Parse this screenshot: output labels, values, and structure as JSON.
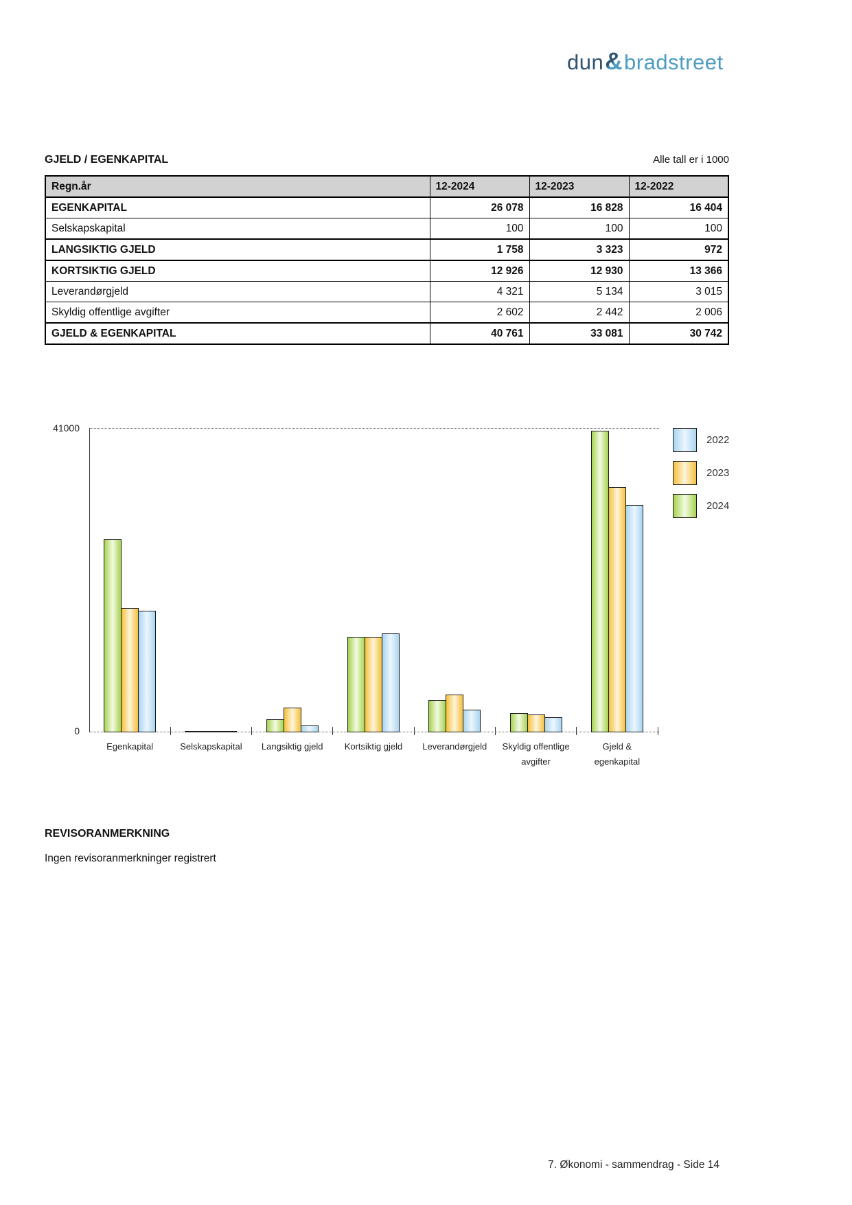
{
  "logo": {
    "part1": "dun",
    "amp": "&",
    "part2": "bradstreet",
    "color_dark": "#30536e",
    "color_light": "#4e9cc0"
  },
  "section": {
    "title": "GJELD / EGENKAPITAL",
    "unit_note": "Alle tall er i 1000"
  },
  "table": {
    "header": [
      "Regn.år",
      "12-2024",
      "12-2023",
      "12-2022"
    ],
    "rows": [
      {
        "label": "EGENKAPITAL",
        "values": [
          "26 078",
          "16 828",
          "16 404"
        ],
        "bold": true
      },
      {
        "label": "Selskapskapital",
        "values": [
          "100",
          "100",
          "100"
        ],
        "bold": false
      },
      {
        "label": "LANGSIKTIG GJELD",
        "values": [
          "1 758",
          "3 323",
          "972"
        ],
        "bold": true
      },
      {
        "label": "KORTSIKTIG GJELD",
        "values": [
          "12 926",
          "12 930",
          "13 366"
        ],
        "bold": true
      },
      {
        "label": "Leverandørgjeld",
        "values": [
          "4 321",
          "5 134",
          "3 015"
        ],
        "bold": false
      },
      {
        "label": "Skyldig offentlige avgifter",
        "values": [
          "2 602",
          "2 442",
          "2 006"
        ],
        "bold": false
      },
      {
        "label": "GJELD & EGENKAPITAL",
        "values": [
          "40 761",
          "33 081",
          "30 742"
        ],
        "bold": true
      }
    ],
    "header_bg": "#d2d2d2"
  },
  "chart_data": {
    "type": "bar",
    "title": "",
    "xlabel": "",
    "ylabel": "",
    "ylim": [
      0,
      41000
    ],
    "y_top_label": "41000",
    "y_bottom_label": "0",
    "grid": "dotted line at y=41000 and dotted baseline at y=0 only",
    "legend_position": "right",
    "legend_order_top_to_bottom": [
      "2022",
      "2023",
      "2024"
    ],
    "categories": [
      "Egenkapital",
      "Selskapskapital",
      "Langsiktig gjeld",
      "Kortsiktig gjeld",
      "Leverandørgjeld",
      "Skyldig offentlige avgifter",
      "Gjeld & egenkapital"
    ],
    "category_labels": [
      [
        "Egenkapital"
      ],
      [
        "Selskapskapital"
      ],
      [
        "Langsiktig gjeld"
      ],
      [
        "Kortsiktig gjeld"
      ],
      [
        "Leverandørgjeld"
      ],
      [
        "Skyldig offentlige",
        "avgifter"
      ],
      [
        "Gjeld &",
        "egenkapital"
      ]
    ],
    "series": [
      {
        "name": "2024",
        "color_edge": "#a6d34f",
        "color_center": "#f3fae3",
        "values": [
          26078,
          100,
          1758,
          12926,
          4321,
          2602,
          40761
        ]
      },
      {
        "name": "2023",
        "color_edge": "#f5c13c",
        "color_center": "#fdf4da",
        "values": [
          16828,
          100,
          3323,
          12930,
          5134,
          2442,
          33081
        ]
      },
      {
        "name": "2022",
        "color_edge": "#a9d5f0",
        "color_center": "#ecf6fd",
        "values": [
          16404,
          100,
          972,
          13366,
          3015,
          2006,
          30742
        ]
      }
    ]
  },
  "revisor": {
    "heading": "REVISORANMERKNING",
    "body": "Ingen revisoranmerkninger registrert"
  },
  "page": {
    "footer": "7. Økonomi - sammendrag - Side 14"
  }
}
